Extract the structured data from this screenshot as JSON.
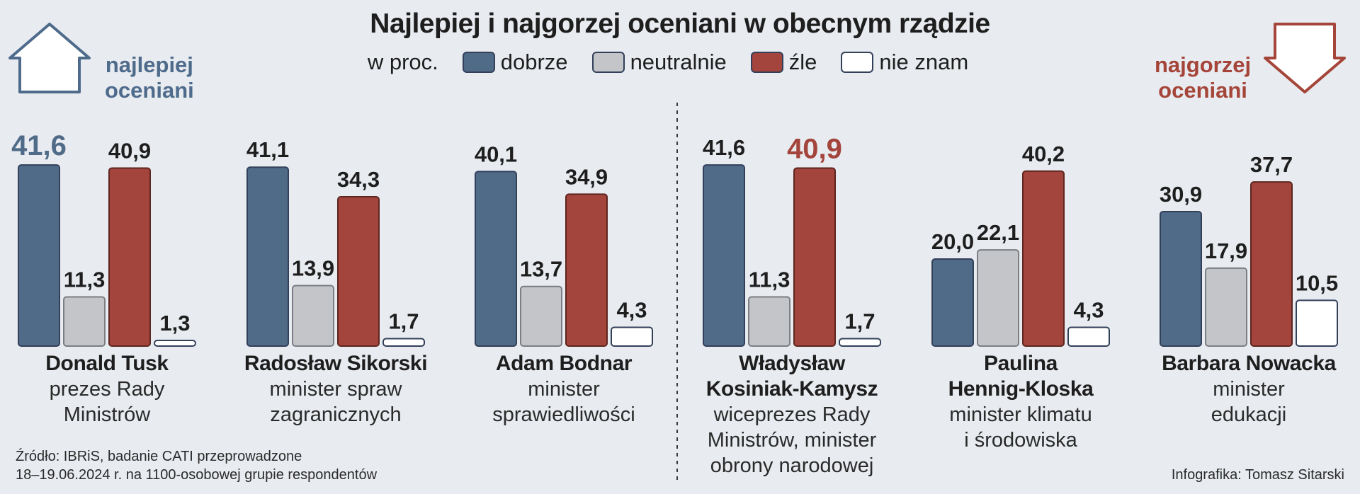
{
  "title": "Najlepiej i najgorzej oceniani w obecnym rządzie",
  "legend": {
    "unit": "w proc.",
    "items": [
      {
        "label": "dobrze",
        "color": "#506b88"
      },
      {
        "label": "neutralnie",
        "color": "#c3c5c8"
      },
      {
        "label": "źle",
        "color": "#a3453c"
      },
      {
        "label": "nie znam",
        "color": "#ffffff"
      }
    ]
  },
  "best_label": {
    "line1": "najlepiej",
    "line2": "oceniani"
  },
  "worst_label": {
    "line1": "najgorzej",
    "line2": "oceniani"
  },
  "chart_data": {
    "type": "bar",
    "categories": [
      "Donald Tusk",
      "Radosław Sikorski",
      "Adam Bodnar",
      "Władysław Kosiniak-Kamysz",
      "Paulina Hennig-Kloska",
      "Barbara Nowacka"
    ],
    "series": [
      {
        "name": "dobrze",
        "values": [
          41.6,
          41.1,
          40.1,
          41.6,
          20.0,
          30.9
        ],
        "labels": [
          "41,6",
          "41,1",
          "40,1",
          "41,6",
          "20,0",
          "30,9"
        ]
      },
      {
        "name": "neutralnie",
        "values": [
          11.3,
          13.9,
          13.7,
          11.3,
          22.1,
          17.9
        ],
        "labels": [
          "11,3",
          "13,9",
          "13,7",
          "11,3",
          "22,1",
          "17,9"
        ]
      },
      {
        "name": "źle",
        "values": [
          40.9,
          34.3,
          34.9,
          40.9,
          40.2,
          37.7
        ],
        "labels": [
          "40,9",
          "34,3",
          "34,9",
          "40,9",
          "40,2",
          "37,7"
        ]
      },
      {
        "name": "nie znam",
        "values": [
          1.3,
          1.7,
          4.3,
          1.7,
          4.3,
          10.5
        ],
        "labels": [
          "1,3",
          "1,7",
          "4,3",
          "1,7",
          "4,3",
          "10,5"
        ]
      }
    ],
    "highlights": [
      {
        "group": 0,
        "series": 0,
        "color": "#506b88"
      },
      {
        "group": 3,
        "series": 2,
        "color": "#a3453c"
      }
    ],
    "ylim": [
      0,
      45
    ]
  },
  "people": [
    {
      "name": [
        "Donald Tusk"
      ],
      "role": [
        "prezes Rady",
        "Ministrów"
      ]
    },
    {
      "name": [
        "Radosław Sikorski"
      ],
      "role": [
        "minister spraw",
        "zagranicznych"
      ]
    },
    {
      "name": [
        "Adam Bodnar"
      ],
      "role": [
        "minister",
        "sprawiedliwości"
      ]
    },
    {
      "name": [
        "Władysław",
        "Kosiniak-Kamysz"
      ],
      "role": [
        "wiceprezes Rady",
        "Ministrów, minister",
        "obrony narodowej"
      ]
    },
    {
      "name": [
        "Paulina",
        "Hennig-Kloska"
      ],
      "role": [
        "minister klimatu",
        "i środowiska"
      ]
    },
    {
      "name": [
        "Barbara Nowacka"
      ],
      "role": [
        "minister",
        "edukacji"
      ]
    }
  ],
  "source": {
    "line1": "Źródło: IBRiS, badanie CATI przeprowadzone",
    "line2": "18–19.06.2024 r. na 1100-osobowej grupie respondentów"
  },
  "credit": "Infografika: Tomasz Sitarski"
}
